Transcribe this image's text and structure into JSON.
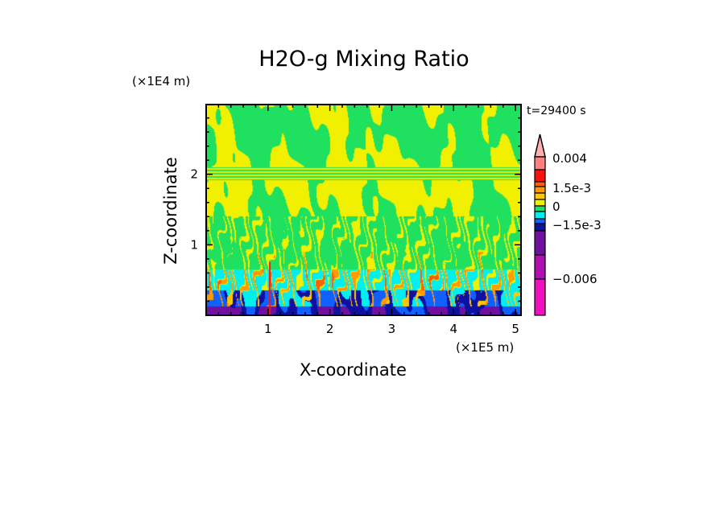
{
  "chart_data": {
    "type": "heatmap",
    "title": "H2O-g Mixing Ratio",
    "xlabel": "X-coordinate",
    "ylabel": "Z-coordinate",
    "x_unit": "(×1E5 m)",
    "z_unit": "(×1E4 m)",
    "time_label": "t=29400 s",
    "xlim": [
      0,
      5.09
    ],
    "ylim": [
      0,
      2.99
    ],
    "x_ticks": [
      {
        "value": 1,
        "label": "1"
      },
      {
        "value": 2,
        "label": "2"
      },
      {
        "value": 3,
        "label": "3"
      },
      {
        "value": 4,
        "label": "4"
      },
      {
        "value": 5,
        "label": "5"
      }
    ],
    "y_ticks": [
      {
        "value": 1,
        "label": "1"
      },
      {
        "value": 2,
        "label": "2"
      }
    ],
    "colorbar": {
      "extend": "max",
      "extend_color": "#ffb0b0",
      "levels": [
        {
          "color": "#ff8080"
        },
        {
          "color": "#ff1010"
        },
        {
          "color": "#ff6000"
        },
        {
          "color": "#ff9a00"
        },
        {
          "color": "#ffc800"
        },
        {
          "color": "#f0f000"
        },
        {
          "color": "#20e060"
        },
        {
          "color": "#00f0f0"
        },
        {
          "color": "#1060ff"
        },
        {
          "color": "#1010a0"
        },
        {
          "color": "#7010a0"
        },
        {
          "color": "#b010b0"
        },
        {
          "color": "#f010c0"
        }
      ],
      "tick_labels": [
        {
          "label": "0.004"
        },
        {
          "label": "1.5e-3"
        },
        {
          "label": "0"
        },
        {
          "label": "−1.5e-3"
        },
        {
          "label": "−0.006"
        }
      ]
    }
  }
}
